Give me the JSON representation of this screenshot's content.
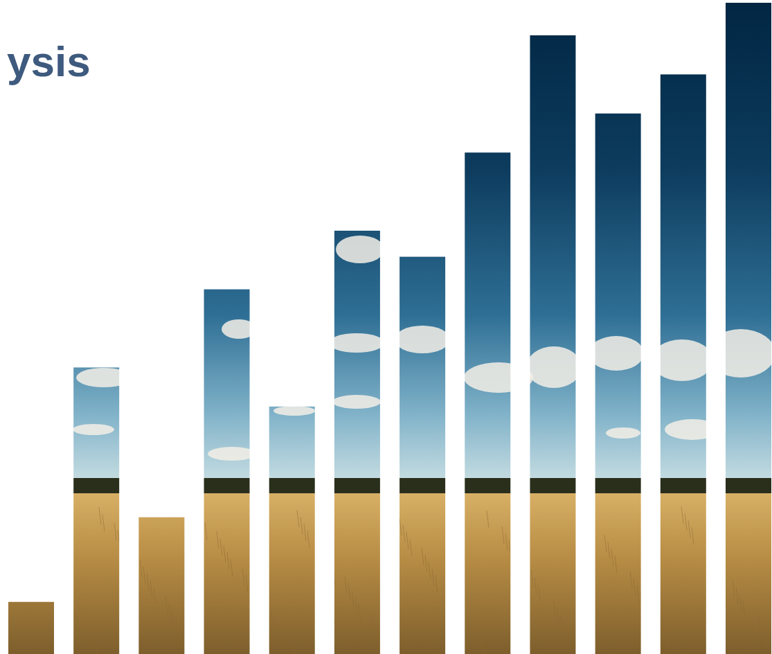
{
  "chart_data": {
    "type": "bar",
    "title": "ysis",
    "categories": [
      null,
      null,
      null,
      null,
      null,
      null,
      null,
      null,
      null,
      null,
      null,
      null
    ],
    "values": [
      8,
      44,
      21,
      56,
      38,
      65,
      61,
      77,
      95,
      83,
      89,
      100
    ],
    "ylim": [
      0,
      100
    ],
    "grid": false,
    "tick_labels": false
  }
}
